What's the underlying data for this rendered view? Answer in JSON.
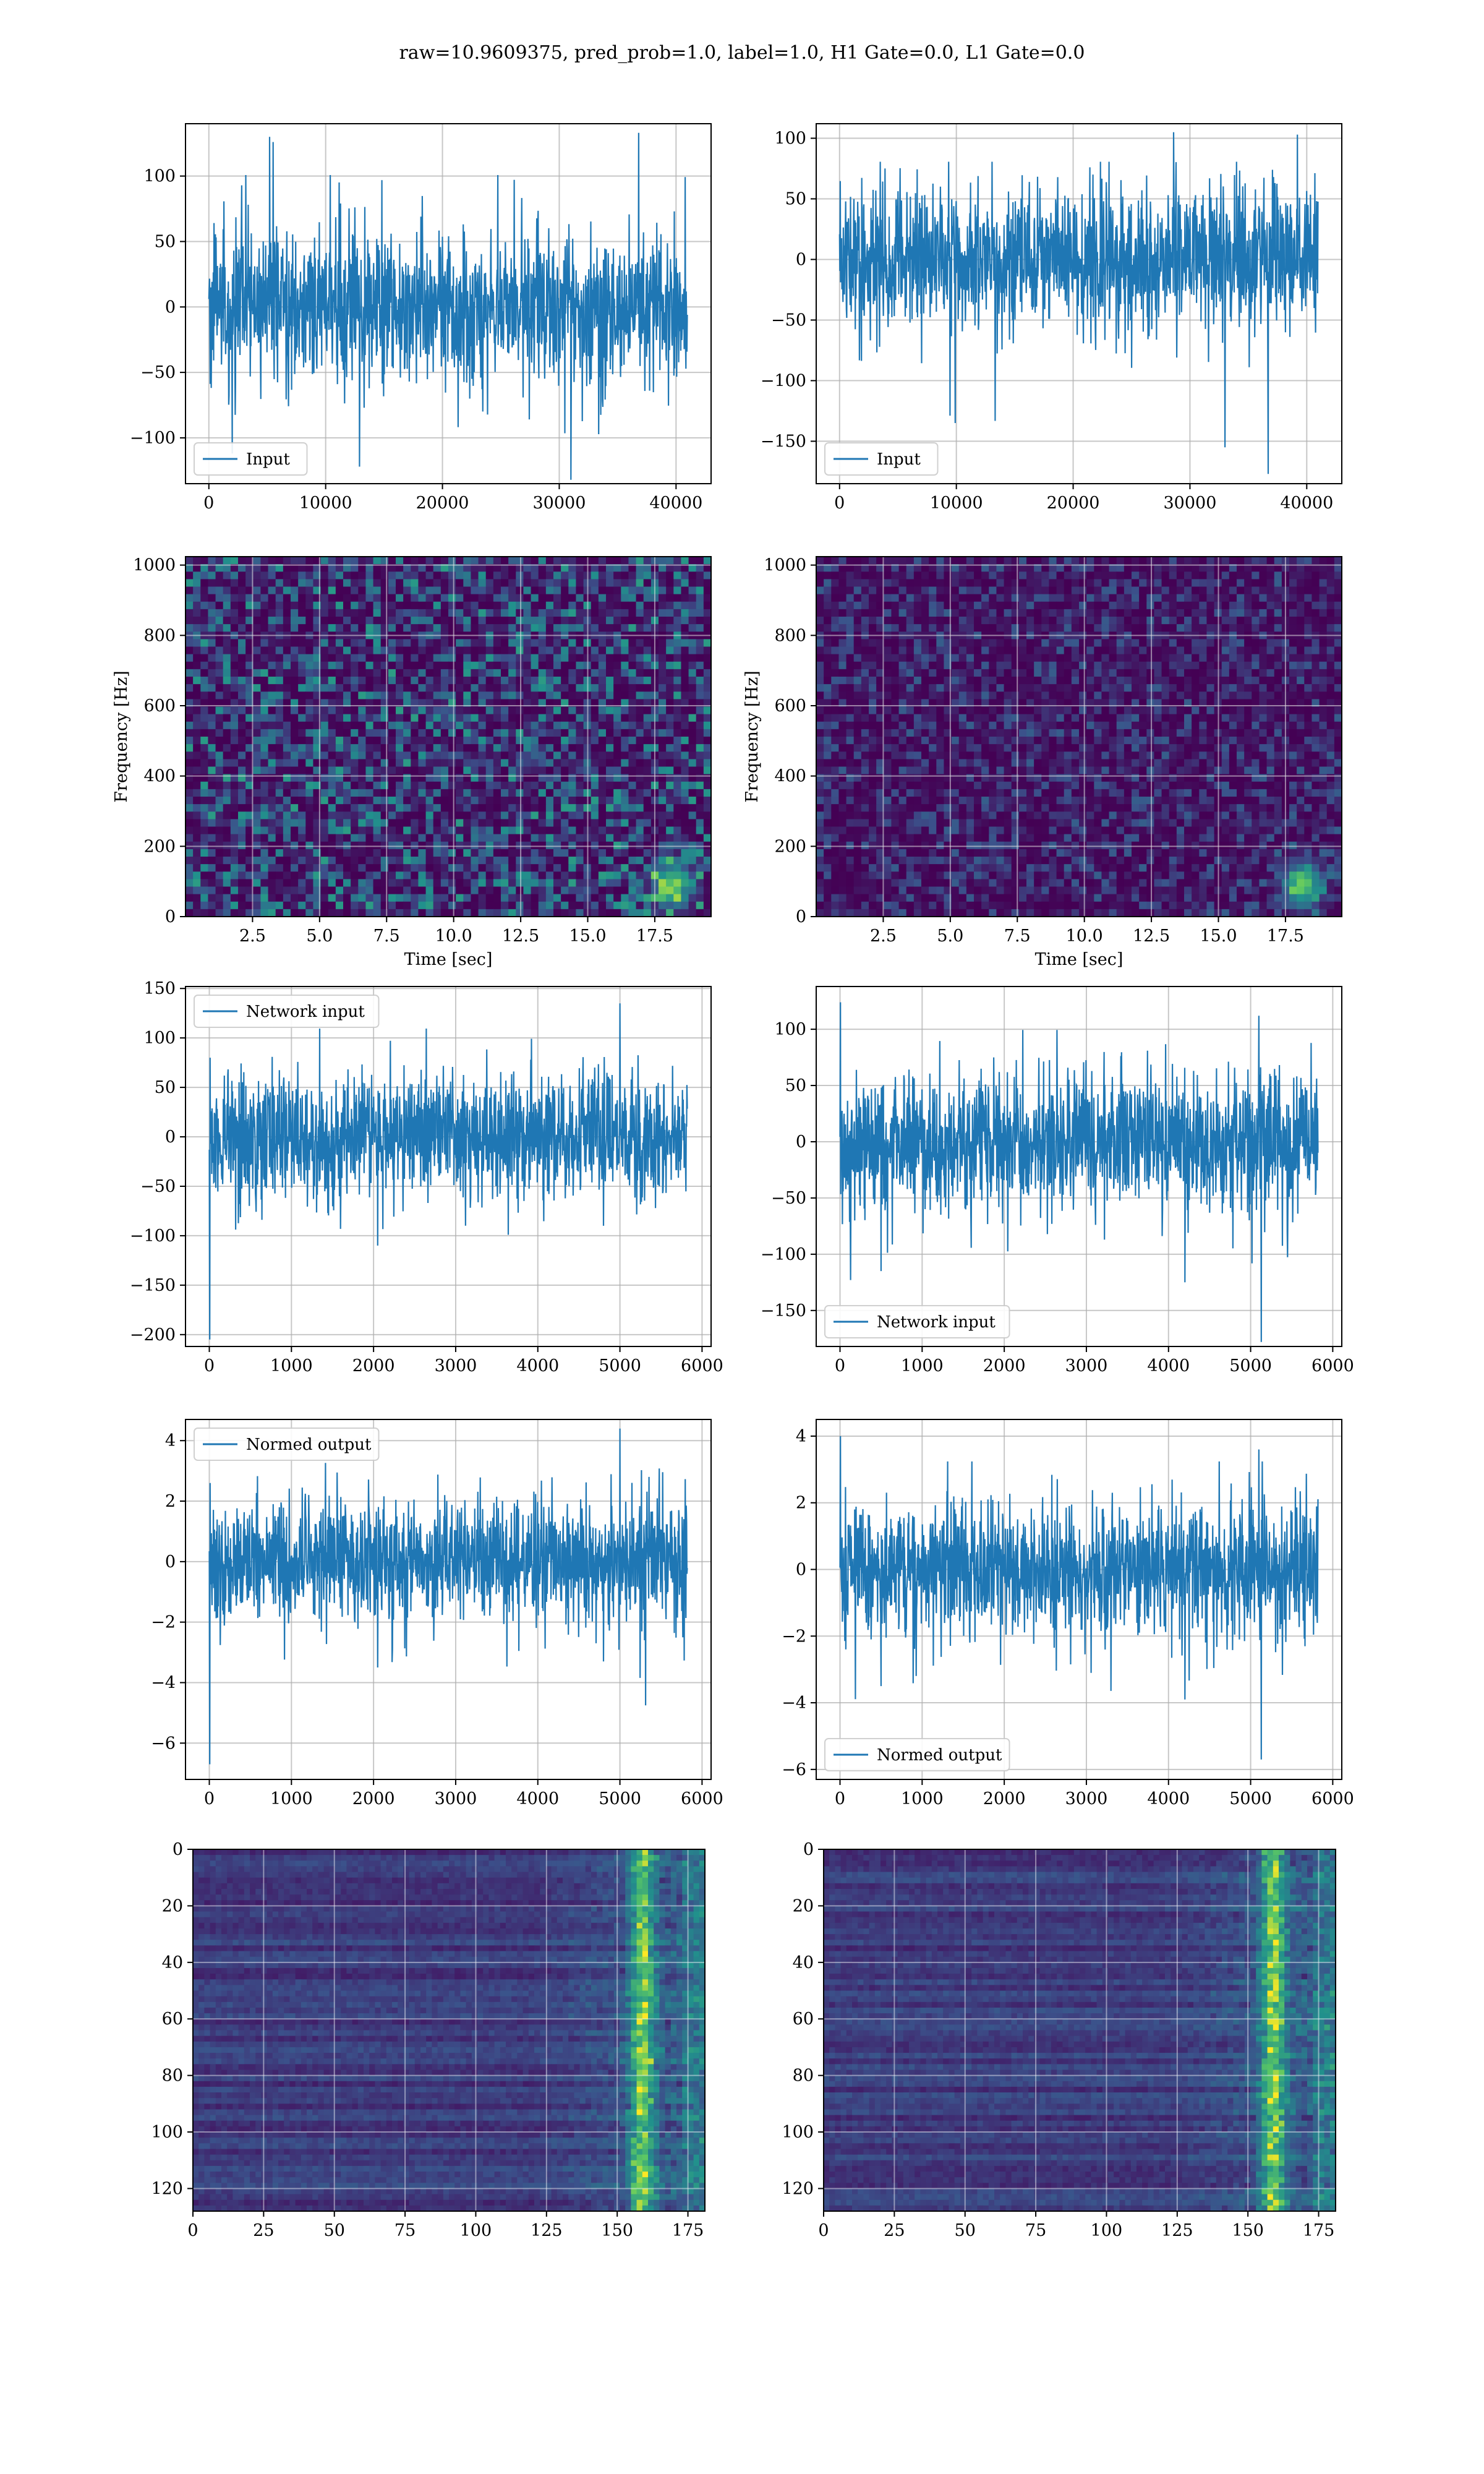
{
  "suptitle": "raw=10.9609375, pred_prob=1.0, label=1.0, H1 Gate=0.0, L1 Gate=0.0",
  "colors": {
    "line": "#1f77b4",
    "grid": "#b0b0b0",
    "viridis_low": "#440154",
    "viridis_mid": "#21918c",
    "viridis_high": "#fde725"
  },
  "chart_data": [
    {
      "id": "r1c1",
      "type": "line",
      "legend": "Input",
      "legend_loc": "lower left",
      "n": 40960,
      "x_range": [
        0,
        40960
      ],
      "xlim": [
        -2000,
        43000
      ],
      "ylim": [
        -135,
        140
      ],
      "xticks": [
        0,
        10000,
        20000,
        30000,
        40000
      ],
      "yticks": [
        -100,
        -50,
        0,
        50,
        100
      ],
      "noise_sigma": 24,
      "spikes": [
        [
          5200,
          130
        ],
        [
          5500,
          126
        ],
        [
          36800,
          133
        ],
        [
          31000,
          -132
        ],
        [
          2000,
          -112
        ],
        [
          12900,
          -122
        ]
      ],
      "xlabel": "",
      "ylabel": ""
    },
    {
      "id": "r1c2",
      "type": "line",
      "legend": "Input",
      "legend_loc": "lower left",
      "n": 40960,
      "x_range": [
        0,
        40960
      ],
      "xlim": [
        -2000,
        43000
      ],
      "ylim": [
        -185,
        112
      ],
      "xticks": [
        0,
        10000,
        20000,
        30000,
        40000
      ],
      "yticks": [
        -150,
        -100,
        -50,
        0,
        50,
        100
      ],
      "noise_sigma": 24,
      "spikes": [
        [
          36700,
          -177
        ],
        [
          33000,
          -155
        ],
        [
          9900,
          -135
        ],
        [
          28600,
          105
        ],
        [
          39200,
          103
        ]
      ],
      "xlabel": "",
      "ylabel": ""
    },
    {
      "id": "r2c1",
      "type": "heatmap",
      "subtype": "spectrogram",
      "xlim": [
        0,
        19.6
      ],
      "ylim": [
        0,
        1024
      ],
      "xticks": [
        2.5,
        5.0,
        7.5,
        10.0,
        12.5,
        15.0,
        17.5
      ],
      "yticks": [
        0,
        200,
        400,
        600,
        800,
        1000
      ],
      "xlabel": "Time [sec]",
      "ylabel": "Frequency [Hz]",
      "intensity": 0.55,
      "hotspot": [
        18.0,
        80
      ]
    },
    {
      "id": "r2c2",
      "type": "heatmap",
      "subtype": "spectrogram",
      "xlim": [
        0,
        19.6
      ],
      "ylim": [
        0,
        1024
      ],
      "xticks": [
        2.5,
        5.0,
        7.5,
        10.0,
        12.5,
        15.0,
        17.5
      ],
      "yticks": [
        0,
        200,
        400,
        600,
        800,
        1000
      ],
      "xlabel": "Time [sec]",
      "ylabel": "Frequency [Hz]",
      "intensity": 0.3,
      "hotspot": [
        18.0,
        80
      ]
    },
    {
      "id": "r3c1",
      "type": "line",
      "legend": "Network input",
      "legend_loc": "upper left",
      "n": 5820,
      "x_range": [
        0,
        5820
      ],
      "xlim": [
        -290,
        6110
      ],
      "ylim": [
        -212,
        152
      ],
      "xticks": [
        0,
        1000,
        2000,
        3000,
        4000,
        5000,
        6000
      ],
      "yticks": [
        -200,
        -150,
        -100,
        -50,
        0,
        50,
        100,
        150
      ],
      "noise_sigma": 26,
      "spikes": [
        [
          5,
          -205
        ],
        [
          10,
          80
        ],
        [
          5000,
          135
        ],
        [
          2050,
          -110
        ],
        [
          4800,
          -90
        ]
      ],
      "xlabel": "",
      "ylabel": ""
    },
    {
      "id": "r3c2",
      "type": "line",
      "legend": "Network input",
      "legend_loc": "lower left",
      "n": 5820,
      "x_range": [
        0,
        5820
      ],
      "xlim": [
        -290,
        6110
      ],
      "ylim": [
        -182,
        138
      ],
      "xticks": [
        0,
        1000,
        2000,
        3000,
        4000,
        5000,
        6000
      ],
      "yticks": [
        -150,
        -100,
        -50,
        0,
        50,
        100
      ],
      "noise_sigma": 26,
      "spikes": [
        [
          5,
          124
        ],
        [
          5130,
          -178
        ],
        [
          5100,
          112
        ],
        [
          500,
          -115
        ],
        [
          4200,
          -125
        ]
      ],
      "xlabel": "",
      "ylabel": ""
    },
    {
      "id": "r4c1",
      "type": "line",
      "legend": "Normed output",
      "legend_loc": "upper left",
      "n": 5820,
      "x_range": [
        0,
        5820
      ],
      "xlim": [
        -290,
        6110
      ],
      "ylim": [
        -7.2,
        4.7
      ],
      "xticks": [
        0,
        1000,
        2000,
        3000,
        4000,
        5000,
        6000
      ],
      "yticks": [
        -6,
        -4,
        -2,
        0,
        2,
        4
      ],
      "noise_sigma": 0.85,
      "spikes": [
        [
          5,
          -6.7
        ],
        [
          10,
          2.6
        ],
        [
          5000,
          4.4
        ],
        [
          2050,
          -3.5
        ],
        [
          4800,
          -3.3
        ]
      ],
      "xlabel": "",
      "ylabel": ""
    },
    {
      "id": "r4c2",
      "type": "line",
      "legend": "Normed output",
      "legend_loc": "lower left",
      "n": 5820,
      "x_range": [
        0,
        5820
      ],
      "xlim": [
        -290,
        6110
      ],
      "ylim": [
        -6.3,
        4.5
      ],
      "xticks": [
        0,
        1000,
        2000,
        3000,
        4000,
        5000,
        6000
      ],
      "yticks": [
        -6,
        -4,
        -2,
        0,
        2,
        4
      ],
      "noise_sigma": 0.85,
      "spikes": [
        [
          5,
          4.0
        ],
        [
          5130,
          -5.7
        ],
        [
          5100,
          3.6
        ],
        [
          500,
          -3.5
        ],
        [
          4200,
          -3.9
        ]
      ],
      "xlabel": "",
      "ylabel": ""
    },
    {
      "id": "r5c1",
      "type": "heatmap",
      "subtype": "feature-map",
      "rows": 128,
      "cols": 181,
      "xlim": [
        0,
        181
      ],
      "ylim": [
        128,
        0
      ],
      "xticks": [
        0,
        25,
        50,
        75,
        100,
        125,
        150,
        175
      ],
      "yticks": [
        0,
        20,
        40,
        60,
        80,
        100,
        120
      ],
      "xlabel": "",
      "ylabel": "",
      "hot_col": 158
    },
    {
      "id": "r5c2",
      "type": "heatmap",
      "subtype": "feature-map",
      "rows": 128,
      "cols": 181,
      "xlim": [
        0,
        181
      ],
      "ylim": [
        128,
        0
      ],
      "xticks": [
        0,
        25,
        50,
        75,
        100,
        125,
        150,
        175
      ],
      "yticks": [
        0,
        20,
        40,
        60,
        80,
        100,
        120
      ],
      "xlabel": "",
      "ylabel": "",
      "hot_col": 158
    }
  ]
}
